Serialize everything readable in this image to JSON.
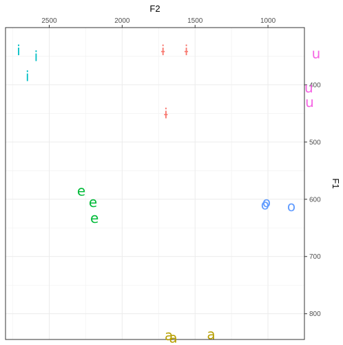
{
  "chart_data": {
    "type": "scatter",
    "xlabel": "F2",
    "ylabel": "F1",
    "x_axis_position": "top",
    "y_axis_position": "right",
    "x_reversed": true,
    "y_reversed": true,
    "xlim": [
      2800,
      750
    ],
    "ylim": [
      845,
      300
    ],
    "x_ticks": [
      2500,
      2000,
      1500,
      1000
    ],
    "y_ticks": [
      400,
      500,
      600,
      700,
      800
    ],
    "x_tick_labels": [
      "2500",
      "2000",
      "1500",
      "1000"
    ],
    "y_tick_labels": [
      "400",
      "500",
      "600",
      "700",
      "800"
    ],
    "grid": true,
    "legend": "none",
    "series": [
      {
        "color": "#F8766D",
        "points": [
          {
            "label": "ɨ",
            "x": 1720,
            "y": 340
          },
          {
            "label": "ɨ",
            "x": 1560,
            "y": 340
          },
          {
            "label": "ɨ",
            "x": 1700,
            "y": 450
          }
        ]
      },
      {
        "color": "#00BFC4",
        "points": [
          {
            "label": "i",
            "x": 2710,
            "y": 340
          },
          {
            "label": "i",
            "x": 2590,
            "y": 350
          },
          {
            "label": "i",
            "x": 2650,
            "y": 385
          }
        ]
      },
      {
        "color": "#00BA38",
        "points": [
          {
            "label": "e",
            "x": 2280,
            "y": 585
          },
          {
            "label": "e",
            "x": 2200,
            "y": 605
          },
          {
            "label": "e",
            "x": 2190,
            "y": 633
          }
        ]
      },
      {
        "color": "#619CFF",
        "points": [
          {
            "label": "o",
            "x": 1010,
            "y": 605
          },
          {
            "label": "o",
            "x": 1020,
            "y": 609
          },
          {
            "label": "o",
            "x": 840,
            "y": 612
          }
        ]
      },
      {
        "color": "#B79F00",
        "points": [
          {
            "label": "a",
            "x": 1680,
            "y": 838
          },
          {
            "label": "a",
            "x": 1650,
            "y": 842
          },
          {
            "label": "a",
            "x": 1390,
            "y": 836
          }
        ]
      },
      {
        "color": "#F564E3",
        "points": [
          {
            "label": "u",
            "x": 670,
            "y": 345
          },
          {
            "label": "u",
            "x": 720,
            "y": 405
          },
          {
            "label": "u",
            "x": 715,
            "y": 430
          }
        ]
      }
    ]
  }
}
